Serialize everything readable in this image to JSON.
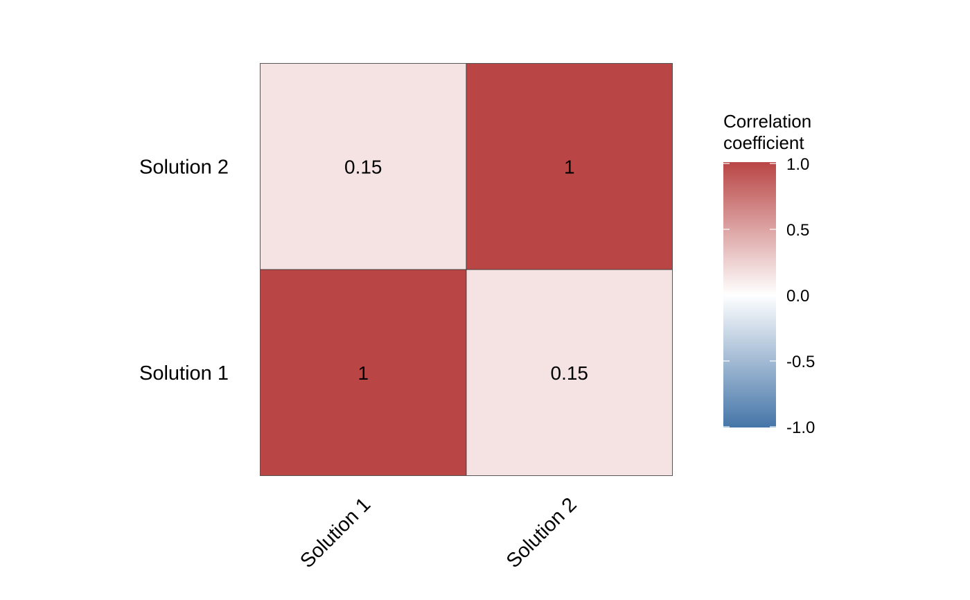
{
  "chart_data": {
    "type": "heatmap",
    "title": "",
    "xlabel": "",
    "ylabel": "",
    "x_categories": [
      "Solution 1",
      "Solution 2"
    ],
    "y_categories": [
      "Solution 1",
      "Solution 2"
    ],
    "cells": [
      {
        "x": "Solution 1",
        "y": "Solution 1",
        "value": 1,
        "label": "1"
      },
      {
        "x": "Solution 2",
        "y": "Solution 1",
        "value": 0.15,
        "label": "0.15"
      },
      {
        "x": "Solution 1",
        "y": "Solution 2",
        "value": 0.15,
        "label": "0.15"
      },
      {
        "x": "Solution 2",
        "y": "Solution 2",
        "value": 1,
        "label": "1"
      }
    ],
    "legend": {
      "title_lines": [
        "Correlation",
        "coefficient"
      ],
      "range": [
        -1,
        1
      ],
      "ticks": [
        1.0,
        0.5,
        0.0,
        -0.5,
        -1.0
      ],
      "tick_labels": [
        "1.0",
        "0.5",
        "0.0",
        "-0.5",
        "-1.0"
      ],
      "placement": "right"
    },
    "colors": {
      "low": "#4575a8",
      "mid": "#ffffff",
      "high": "#b94545"
    }
  }
}
